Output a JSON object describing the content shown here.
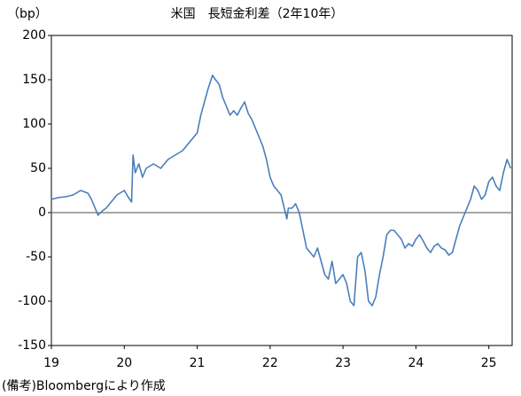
{
  "chart_data": {
    "type": "line",
    "title": "米国　長短金利差（2年10年）",
    "y_label": "（bp）",
    "note": "(備考)Bloombergにより作成",
    "x": [
      19.0,
      19.1,
      19.2,
      19.3,
      19.4,
      19.5,
      19.55,
      19.6,
      19.64,
      19.7,
      19.75,
      19.8,
      19.9,
      20.0,
      20.05,
      20.1,
      20.12,
      20.15,
      20.2,
      20.25,
      20.3,
      20.4,
      20.5,
      20.6,
      20.7,
      20.8,
      20.9,
      21.0,
      21.05,
      21.1,
      21.15,
      21.21,
      21.25,
      21.3,
      21.35,
      21.4,
      21.45,
      21.5,
      21.55,
      21.6,
      21.65,
      21.7,
      21.75,
      21.8,
      21.85,
      21.9,
      21.95,
      22.0,
      22.05,
      22.1,
      22.15,
      22.23,
      22.25,
      22.3,
      22.35,
      22.4,
      22.45,
      22.5,
      22.55,
      22.6,
      22.65,
      22.7,
      22.75,
      22.8,
      22.85,
      22.9,
      22.95,
      23.0,
      23.05,
      23.1,
      23.15,
      23.2,
      23.25,
      23.3,
      23.35,
      23.4,
      23.45,
      23.5,
      23.55,
      23.6,
      23.65,
      23.7,
      23.75,
      23.8,
      23.85,
      23.9,
      23.95,
      24.0,
      24.05,
      24.1,
      24.15,
      24.2,
      24.25,
      24.3,
      24.35,
      24.4,
      24.45,
      24.5,
      24.55,
      24.6,
      24.65,
      24.7,
      24.75,
      24.8,
      24.85,
      24.9,
      24.95,
      25.0,
      25.05,
      25.1,
      25.15,
      25.2,
      25.25,
      25.3
    ],
    "series": [
      {
        "name": "長短金利差",
        "color": "#4a7ebb",
        "values": [
          15,
          17,
          18,
          20,
          25,
          22,
          15,
          5,
          -3,
          2,
          5,
          10,
          20,
          25,
          18,
          12,
          65,
          45,
          55,
          40,
          50,
          55,
          50,
          60,
          65,
          70,
          80,
          90,
          110,
          125,
          140,
          155,
          150,
          145,
          130,
          120,
          110,
          115,
          110,
          118,
          125,
          112,
          105,
          95,
          85,
          75,
          60,
          40,
          30,
          25,
          20,
          -7,
          5,
          5,
          10,
          0,
          -20,
          -40,
          -45,
          -50,
          -40,
          -55,
          -70,
          -75,
          -55,
          -80,
          -75,
          -70,
          -80,
          -100,
          -105,
          -50,
          -45,
          -65,
          -100,
          -105,
          -95,
          -70,
          -50,
          -25,
          -20,
          -20,
          -25,
          -30,
          -40,
          -35,
          -38,
          -30,
          -25,
          -32,
          -40,
          -45,
          -38,
          -35,
          -40,
          -42,
          -48,
          -45,
          -30,
          -15,
          -5,
          5,
          15,
          30,
          25,
          15,
          20,
          35,
          40,
          30,
          25,
          45,
          60,
          50
        ]
      }
    ],
    "xlim": [
      19,
      25.32
    ],
    "xticks": [
      19,
      20,
      21,
      22,
      23,
      24,
      25
    ],
    "ylim": [
      -150,
      200
    ],
    "yticks": [
      -150,
      -100,
      -50,
      0,
      50,
      100,
      150,
      200
    ]
  }
}
